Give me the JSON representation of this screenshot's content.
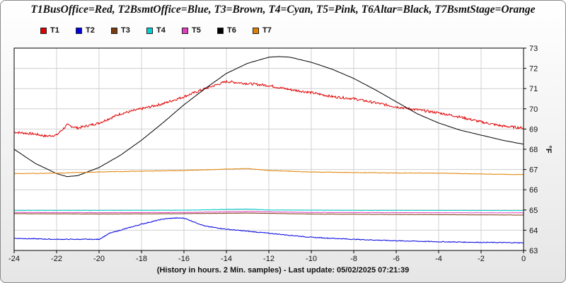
{
  "chart_data": {
    "type": "line",
    "title": "T1BusOffice=Red, T2BsmtOffice=Blue, T3=Brown, T4=Cyan, T5=Pink, T6Altar=Black, T7BsmtStage=Orange",
    "xlabel": "(History in hours. 2 Min. samples) - Last update: 05/02/2025 07:21:39",
    "ylabel": "°F",
    "xlim": [
      -24,
      0
    ],
    "ylim": [
      63,
      73
    ],
    "x_ticks": [
      "-24",
      "-22",
      "-20",
      "-18",
      "-16",
      "-14",
      "-12",
      "-10",
      "-8",
      "-6",
      "-4",
      "-2",
      "0"
    ],
    "y_ticks": [
      "63",
      "64",
      "65",
      "66",
      "67",
      "68",
      "69",
      "70",
      "71",
      "72",
      "73"
    ],
    "grid": true,
    "legend_position": "top-left",
    "series": [
      {
        "name": "T1",
        "color": "#e00000",
        "x": [
          -24,
          -23,
          -22.5,
          -22,
          -21.5,
          -21,
          -20,
          -19,
          -18,
          -17,
          -16,
          -15,
          -14,
          -13,
          -12,
          -11,
          -10,
          -9,
          -8,
          -7,
          -6,
          -5,
          -4,
          -3,
          -2,
          -1,
          0
        ],
        "y": [
          68.85,
          68.75,
          68.65,
          68.7,
          69.2,
          69.05,
          69.3,
          69.75,
          70.0,
          70.25,
          70.6,
          71.0,
          71.35,
          71.25,
          71.15,
          70.95,
          70.8,
          70.6,
          70.5,
          70.3,
          70.1,
          69.95,
          69.8,
          69.6,
          69.35,
          69.15,
          69.05
        ]
      },
      {
        "name": "T2",
        "color": "#0000e0",
        "x": [
          -24,
          -22,
          -20,
          -19.5,
          -19,
          -18,
          -17,
          -16.5,
          -16,
          -15.5,
          -15,
          -14,
          -13,
          -12,
          -11,
          -10,
          -8,
          -6,
          -4,
          -2,
          0
        ],
        "y": [
          63.6,
          63.55,
          63.55,
          63.85,
          64.0,
          64.3,
          64.55,
          64.6,
          64.6,
          64.4,
          64.2,
          64.05,
          63.95,
          63.85,
          63.75,
          63.65,
          63.55,
          63.48,
          63.43,
          63.4,
          63.38
        ]
      },
      {
        "name": "T3",
        "color": "#7a3b10",
        "x": [
          -24,
          -20,
          -16,
          -13,
          -10,
          -6,
          -2,
          0
        ],
        "y": [
          64.82,
          64.8,
          64.82,
          64.85,
          64.8,
          64.78,
          64.76,
          64.75
        ]
      },
      {
        "name": "T4",
        "color": "#00d0d0",
        "x": [
          -24,
          -20,
          -16,
          -14,
          -13,
          -12,
          -8,
          -4,
          0
        ],
        "y": [
          64.98,
          64.98,
          64.99,
          65.03,
          65.05,
          65.0,
          64.98,
          64.98,
          64.97
        ]
      },
      {
        "name": "T5",
        "color": "#e040c0",
        "x": [
          -24,
          -20,
          -16,
          -13,
          -10,
          -6,
          -2,
          0
        ],
        "y": [
          64.88,
          64.87,
          64.88,
          64.92,
          64.88,
          64.87,
          64.86,
          64.86
        ]
      },
      {
        "name": "T6",
        "color": "#000000",
        "x": [
          -24,
          -23,
          -22,
          -21.5,
          -21,
          -20,
          -19,
          -18,
          -17,
          -16,
          -15,
          -14,
          -13,
          -12,
          -11.5,
          -11,
          -10,
          -9,
          -8,
          -7,
          -6,
          -5,
          -4,
          -3,
          -2,
          -1,
          0
        ],
        "y": [
          68.0,
          67.3,
          66.8,
          66.65,
          66.7,
          67.1,
          67.7,
          68.45,
          69.3,
          70.2,
          71.0,
          71.75,
          72.25,
          72.55,
          72.58,
          72.55,
          72.3,
          71.95,
          71.5,
          70.95,
          70.35,
          69.75,
          69.3,
          68.95,
          68.7,
          68.45,
          68.25
        ]
      },
      {
        "name": "T7",
        "color": "#e08000",
        "x": [
          -24,
          -22,
          -20,
          -18,
          -16,
          -14,
          -13,
          -12,
          -10,
          -8,
          -6,
          -4,
          -2,
          0
        ],
        "y": [
          66.8,
          66.82,
          66.88,
          66.92,
          66.95,
          67.02,
          67.05,
          66.95,
          66.88,
          66.85,
          66.83,
          66.82,
          66.78,
          66.75
        ]
      }
    ]
  }
}
